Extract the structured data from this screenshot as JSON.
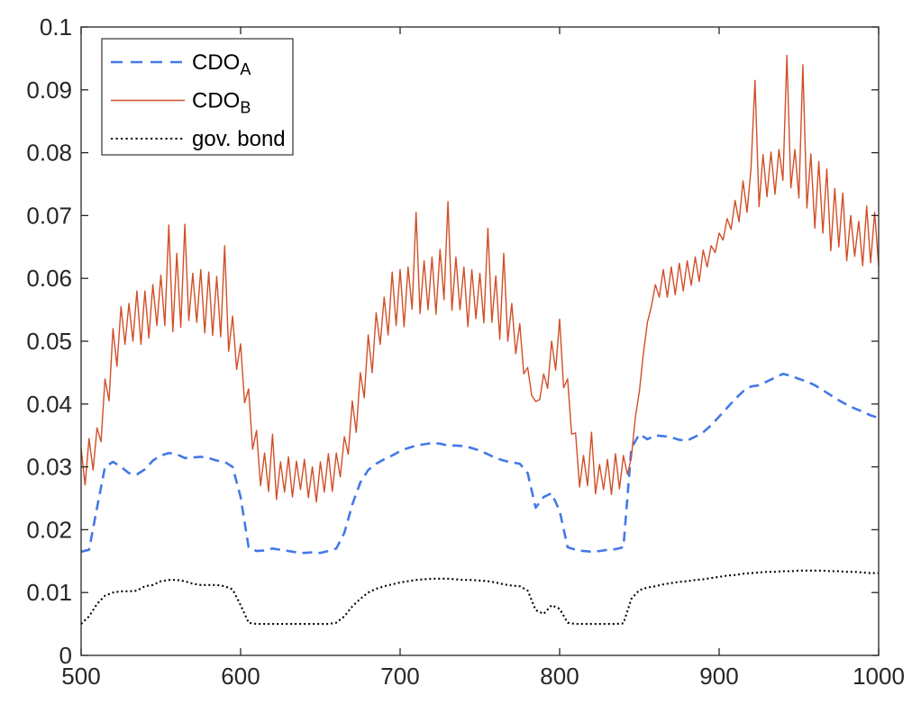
{
  "chart_data": {
    "type": "line",
    "title": "",
    "xlabel": "",
    "ylabel": "",
    "xlim": [
      500,
      1000
    ],
    "ylim": [
      0,
      0.1
    ],
    "grid": false,
    "axis_color": "#262626",
    "xticks": [
      500,
      600,
      700,
      800,
      900,
      1000
    ],
    "xtick_labels": [
      "500",
      "600",
      "700",
      "800",
      "900",
      "1000"
    ],
    "yticks": [
      0,
      0.01,
      0.02,
      0.03,
      0.04,
      0.05,
      0.06,
      0.07,
      0.08,
      0.09,
      0.1
    ],
    "ytick_labels": [
      "0",
      "0.01",
      "0.02",
      "0.03",
      "0.04",
      "0.05",
      "0.06",
      "0.07",
      "0.08",
      "0.09",
      "0.1"
    ],
    "legend": {
      "position": "northwest",
      "entries": [
        {
          "label": "CDO",
          "sub": "A",
          "series": 0
        },
        {
          "label": "CDO",
          "sub": "B",
          "series": 1
        },
        {
          "label": "gov. bond",
          "sub": "",
          "series": 2
        }
      ]
    },
    "series": [
      {
        "name": "CDO_A",
        "color": "#4379e6",
        "style": "dashed",
        "width": 2.6,
        "x_start": 500,
        "x_step": 5,
        "y": [
          0.0165,
          0.0168,
          0.0235,
          0.03,
          0.0308,
          0.03,
          0.029,
          0.0288,
          0.0296,
          0.031,
          0.0318,
          0.0322,
          0.032,
          0.0314,
          0.0315,
          0.0316,
          0.0314,
          0.031,
          0.0308,
          0.03,
          0.0252,
          0.0172,
          0.0166,
          0.0167,
          0.017,
          0.0168,
          0.0166,
          0.0164,
          0.0163,
          0.0164,
          0.0163,
          0.0166,
          0.017,
          0.0195,
          0.024,
          0.0275,
          0.0295,
          0.0305,
          0.0312,
          0.0318,
          0.0325,
          0.033,
          0.0334,
          0.0336,
          0.0338,
          0.0337,
          0.0334,
          0.0334,
          0.0333,
          0.033,
          0.0326,
          0.032,
          0.0314,
          0.031,
          0.0307,
          0.0305,
          0.029,
          0.0235,
          0.0252,
          0.0258,
          0.023,
          0.0172,
          0.0168,
          0.0166,
          0.0165,
          0.0166,
          0.0168,
          0.0169,
          0.0172,
          0.033,
          0.0352,
          0.0344,
          0.035,
          0.0349,
          0.0347,
          0.0343,
          0.0342,
          0.0348,
          0.0355,
          0.0366,
          0.038,
          0.0394,
          0.0408,
          0.042,
          0.0428,
          0.043,
          0.0436,
          0.0442,
          0.0448,
          0.0445,
          0.044,
          0.0436,
          0.043,
          0.0422,
          0.0414,
          0.0406,
          0.0399,
          0.0393,
          0.0388,
          0.0382,
          0.0378
        ]
      },
      {
        "name": "CDO_B",
        "color": "#d14f28",
        "style": "solid",
        "width": 1.4,
        "x_start": 500,
        "x_step": 2.5,
        "y": [
          0.033,
          0.0271,
          0.0345,
          0.0295,
          0.0362,
          0.034,
          0.044,
          0.0405,
          0.052,
          0.046,
          0.0555,
          0.0495,
          0.056,
          0.05,
          0.058,
          0.0495,
          0.058,
          0.0505,
          0.059,
          0.0525,
          0.0605,
          0.0525,
          0.0685,
          0.0515,
          0.064,
          0.0522,
          0.0686,
          0.0533,
          0.0608,
          0.053,
          0.0614,
          0.0513,
          0.061,
          0.0509,
          0.0603,
          0.0507,
          0.0652,
          0.0484,
          0.054,
          0.0455,
          0.0496,
          0.0402,
          0.0424,
          0.0328,
          0.0358,
          0.027,
          0.0322,
          0.0261,
          0.0352,
          0.0248,
          0.0308,
          0.026,
          0.0316,
          0.0252,
          0.0309,
          0.0264,
          0.0312,
          0.0251,
          0.03,
          0.0244,
          0.0308,
          0.026,
          0.0321,
          0.0261,
          0.0322,
          0.0284,
          0.0348,
          0.032,
          0.0405,
          0.0355,
          0.045,
          0.041,
          0.051,
          0.045,
          0.0545,
          0.0495,
          0.057,
          0.051,
          0.061,
          0.0525,
          0.0614,
          0.0523,
          0.0618,
          0.0551,
          0.0705,
          0.0544,
          0.0628,
          0.055,
          0.0634,
          0.0543,
          0.0646,
          0.0566,
          0.0722,
          0.0549,
          0.0634,
          0.055,
          0.0618,
          0.0523,
          0.0614,
          0.0536,
          0.0608,
          0.0529,
          0.068,
          0.053,
          0.0604,
          0.0503,
          0.064,
          0.05,
          0.056,
          0.048,
          0.0528,
          0.0448,
          0.0458,
          0.0414,
          0.0404,
          0.0407,
          0.0448,
          0.0425,
          0.05,
          0.0454,
          0.0535,
          0.0426,
          0.044,
          0.0352,
          0.0354,
          0.0268,
          0.0318,
          0.027,
          0.0355,
          0.0257,
          0.0304,
          0.0264,
          0.0312,
          0.0256,
          0.0321,
          0.0265,
          0.0318,
          0.0288,
          0.0315,
          0.038,
          0.042,
          0.048,
          0.053,
          0.0555,
          0.059,
          0.057,
          0.0614,
          0.057,
          0.0618,
          0.0574,
          0.0624,
          0.058,
          0.0628,
          0.0589,
          0.0634,
          0.0595,
          0.0645,
          0.0618,
          0.0652,
          0.0641,
          0.0672,
          0.0661,
          0.0695,
          0.0678,
          0.0724,
          0.069,
          0.0755,
          0.0705,
          0.0776,
          0.0915,
          0.0714,
          0.0797,
          0.073,
          0.0801,
          0.0734,
          0.0805,
          0.0756,
          0.0955,
          0.0744,
          0.0805,
          0.0728,
          0.094,
          0.0712,
          0.0798,
          0.068,
          0.0786,
          0.0672,
          0.0774,
          0.0644,
          0.0743,
          0.065,
          0.0736,
          0.0628,
          0.07,
          0.0635,
          0.0691,
          0.062,
          0.0715,
          0.0625,
          0.0705,
          0.062
        ]
      },
      {
        "name": "gov. bond",
        "color": "#000000",
        "style": "dotted",
        "width": 2.1,
        "x_start": 500,
        "x_step": 5,
        "y": [
          0.005,
          0.0062,
          0.0082,
          0.0095,
          0.01,
          0.0102,
          0.0102,
          0.0103,
          0.011,
          0.0112,
          0.0118,
          0.012,
          0.012,
          0.0118,
          0.0114,
          0.0112,
          0.0112,
          0.0112,
          0.011,
          0.0105,
          0.008,
          0.0052,
          0.005,
          0.005,
          0.005,
          0.005,
          0.005,
          0.005,
          0.005,
          0.005,
          0.005,
          0.005,
          0.0052,
          0.0062,
          0.0078,
          0.009,
          0.01,
          0.0106,
          0.011,
          0.0113,
          0.0116,
          0.0118,
          0.012,
          0.0121,
          0.0122,
          0.0122,
          0.0122,
          0.0121,
          0.012,
          0.012,
          0.0119,
          0.0118,
          0.0116,
          0.0113,
          0.0111,
          0.011,
          0.0103,
          0.0072,
          0.0066,
          0.008,
          0.0074,
          0.0052,
          0.005,
          0.005,
          0.005,
          0.005,
          0.005,
          0.005,
          0.0051,
          0.009,
          0.0104,
          0.0108,
          0.011,
          0.0113,
          0.0115,
          0.0117,
          0.0118,
          0.012,
          0.0121,
          0.0123,
          0.0125,
          0.0127,
          0.0128,
          0.013,
          0.0131,
          0.0132,
          0.0133,
          0.0133,
          0.0134,
          0.0134,
          0.0135,
          0.0135,
          0.0135,
          0.0135,
          0.0134,
          0.0134,
          0.0133,
          0.0133,
          0.0132,
          0.0131,
          0.0131
        ]
      }
    ]
  }
}
